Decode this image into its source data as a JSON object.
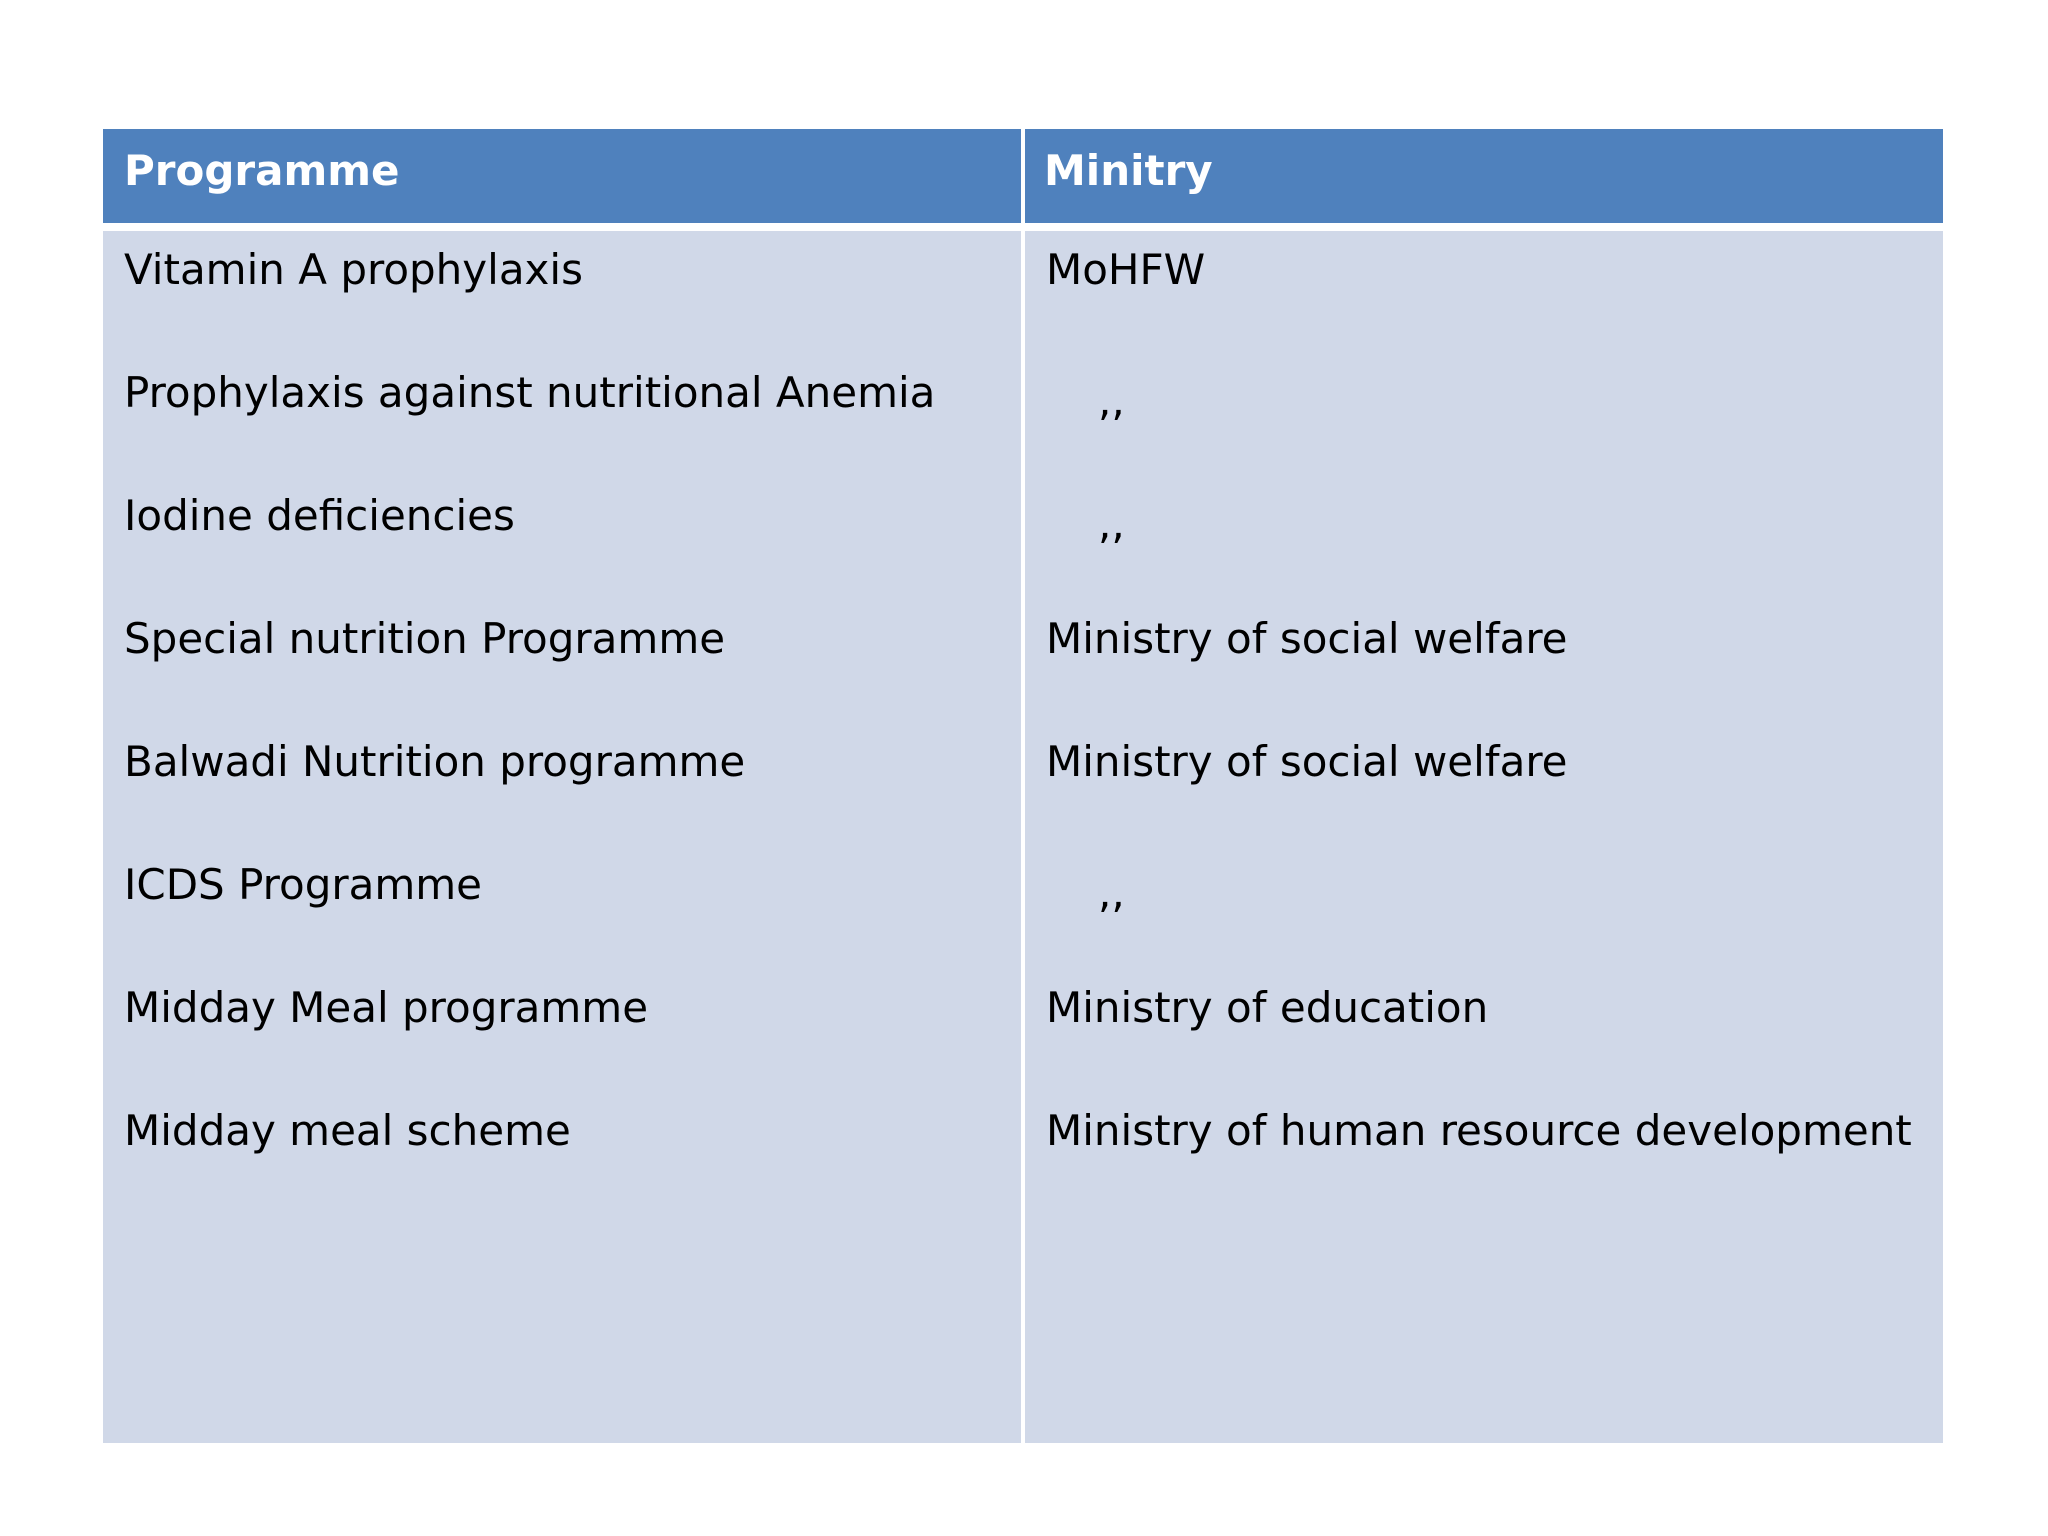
{
  "table": {
    "header": [
      "Programme",
      "Minitry"
    ],
    "rows": [
      [
        "Vitamin A prophylaxis",
        "MoHFW"
      ],
      [
        "Prophylaxis against nutritional Anemia",
        ",,"
      ],
      [
        "Iodine deficiencies",
        ",,"
      ],
      [
        "Special nutrition Programme",
        "Ministry of social welfare"
      ],
      [
        "Balwadi Nutrition programme",
        "Ministry of social welfare"
      ],
      [
        "ICDS Programme",
        ",,"
      ],
      [
        "Midday Meal programme",
        "Ministry of education"
      ],
      [
        "Midday meal scheme",
        "Ministry of human resource development"
      ]
    ]
  }
}
